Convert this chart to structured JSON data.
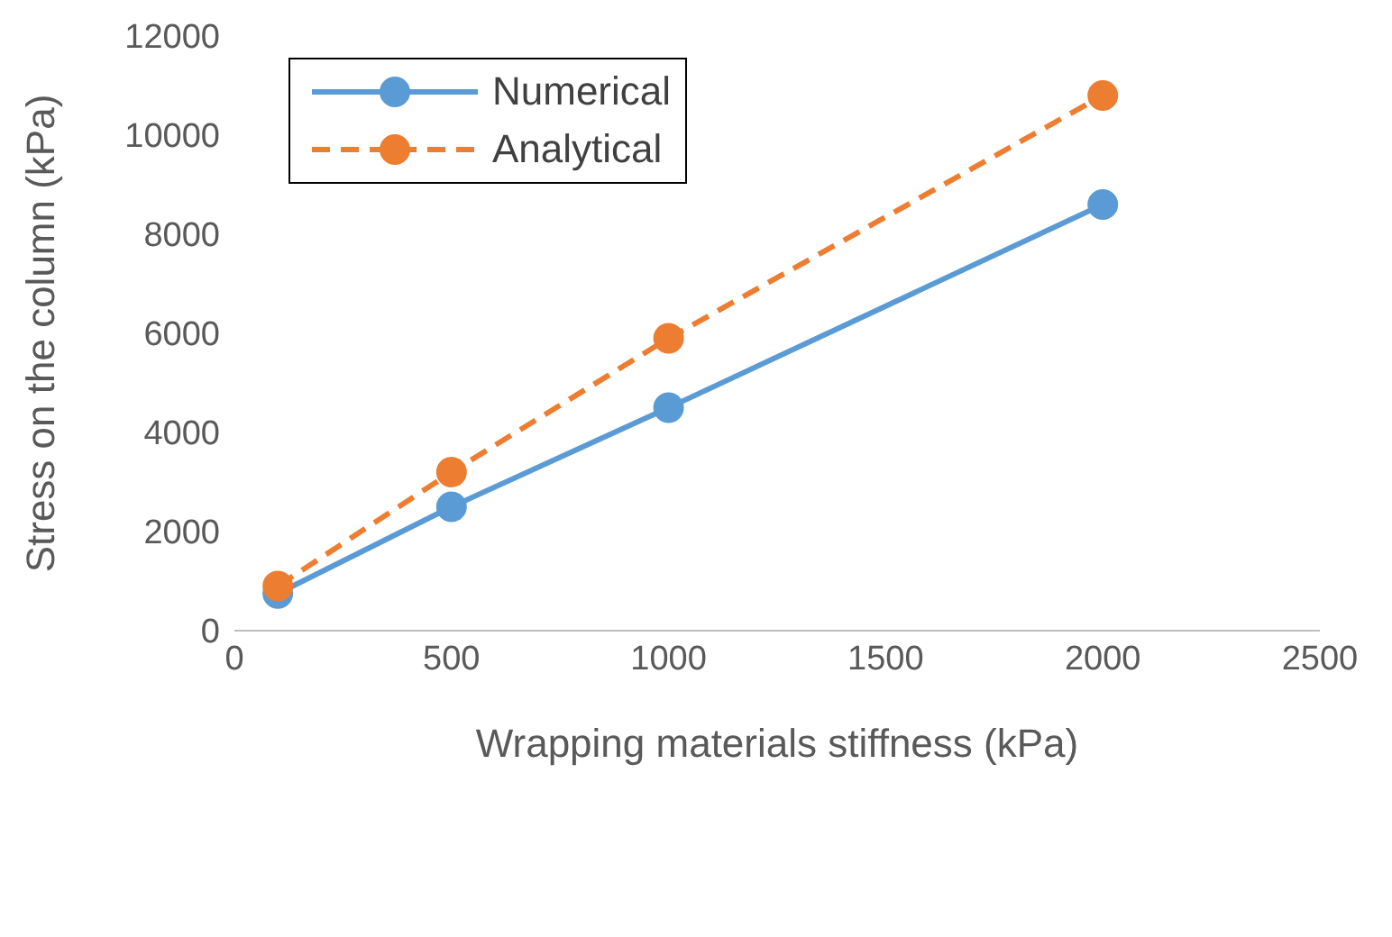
{
  "chart_data": {
    "type": "line",
    "xlabel": "Wrapping materials stiffness (kPa)",
    "ylabel": "Stress on the column (kPa)",
    "x": [
      100,
      500,
      1000,
      2000
    ],
    "series": [
      {
        "name": "Numerical",
        "color": "#5b9bd5",
        "values": [
          750,
          2500,
          4500,
          8600
        ],
        "line_style": "solid"
      },
      {
        "name": "Analytical",
        "color": "#ed7d31",
        "values": [
          900,
          3200,
          5900,
          10800
        ],
        "line_style": "dashed"
      }
    ],
    "xlim": [
      0,
      2500
    ],
    "xticks": [
      0,
      500,
      1000,
      1500,
      2000,
      2500
    ],
    "ylim": [
      0,
      12000
    ],
    "yticks": [
      0,
      2000,
      4000,
      6000,
      8000,
      10000,
      12000
    ],
    "grid": false,
    "legend": "top left",
    "marker": "circle"
  }
}
